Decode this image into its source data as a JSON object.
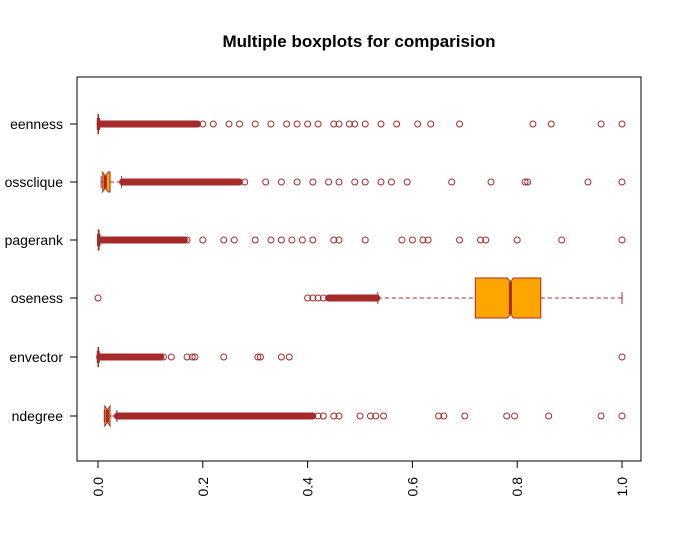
{
  "chart_data": {
    "type": "boxplot",
    "orientation": "horizontal",
    "title": "Multiple boxplots for comparision",
    "xlim": [
      0,
      1
    ],
    "x_ticks": [
      "0.0",
      "0.2",
      "0.4",
      "0.6",
      "0.8",
      "1.0"
    ],
    "x_tick_values": [
      0,
      0.2,
      0.4,
      0.6,
      0.8,
      1.0
    ],
    "grid": false,
    "notched": true,
    "colors": {
      "box_fill": "#FFA500",
      "border": "#A52A2A",
      "axis": "#000000"
    },
    "series": [
      {
        "label": "indegree",
        "display_label": "ndegree",
        "min": 0.012,
        "q1": 0.013,
        "median": 0.018,
        "q3": 0.023,
        "max": 0.036,
        "outlier_band": [
          0.037,
          0.41
        ],
        "outliers": [
          0.42,
          0.43,
          0.45,
          0.46,
          0.5,
          0.52,
          0.53,
          0.545,
          0.65,
          0.66,
          0.7,
          0.78,
          0.795,
          0.86,
          0.96,
          1.0
        ]
      },
      {
        "label": "eigenvector",
        "display_label": "envector",
        "min": 0.0,
        "q1": 0.0,
        "median": 0.0005,
        "q3": 0.001,
        "max": 0.002,
        "outlier_band": [
          0.003,
          0.12
        ],
        "outliers": [
          0.125,
          0.14,
          0.17,
          0.18,
          0.185,
          0.24,
          0.305,
          0.31,
          0.35,
          0.365,
          1.0
        ]
      },
      {
        "label": "closeness",
        "display_label": "oseness",
        "min": 0.534,
        "q1": 0.72,
        "median": 0.787,
        "q3": 0.845,
        "max": 1.0,
        "outlier_band": [
          0.44,
          0.532
        ],
        "outliers": [
          0.0,
          0.4,
          0.41,
          0.42,
          0.43
        ]
      },
      {
        "label": "pagerank",
        "display_label": "pagerank",
        "min": 0.0,
        "q1": 0.0005,
        "median": 0.001,
        "q3": 0.002,
        "max": 0.004,
        "outlier_band": [
          0.005,
          0.165
        ],
        "outliers": [
          0.17,
          0.2,
          0.24,
          0.26,
          0.3,
          0.33,
          0.35,
          0.37,
          0.39,
          0.41,
          0.45,
          0.46,
          0.51,
          0.58,
          0.6,
          0.62,
          0.63,
          0.69,
          0.73,
          0.74,
          0.8,
          0.885,
          1.0
        ]
      },
      {
        "label": "crossclique",
        "display_label": "ossclique",
        "min": 0.006,
        "q1": 0.009,
        "median": 0.014,
        "q3": 0.023,
        "max": 0.045,
        "outlier_band": [
          0.047,
          0.27
        ],
        "outliers": [
          0.28,
          0.32,
          0.35,
          0.38,
          0.41,
          0.44,
          0.46,
          0.49,
          0.51,
          0.54,
          0.56,
          0.59,
          0.675,
          0.75,
          0.815,
          0.82,
          0.935,
          1.0
        ]
      },
      {
        "label": "betweenness",
        "display_label": "eenness",
        "min": 0.0,
        "q1": 0.0,
        "median": 0.0005,
        "q3": 0.001,
        "max": 0.003,
        "outlier_band": [
          0.004,
          0.19
        ],
        "outliers": [
          0.2,
          0.22,
          0.25,
          0.27,
          0.3,
          0.33,
          0.36,
          0.38,
          0.4,
          0.42,
          0.45,
          0.46,
          0.48,
          0.49,
          0.51,
          0.54,
          0.57,
          0.61,
          0.635,
          0.69,
          0.83,
          0.865,
          0.96,
          1.0
        ]
      }
    ]
  }
}
